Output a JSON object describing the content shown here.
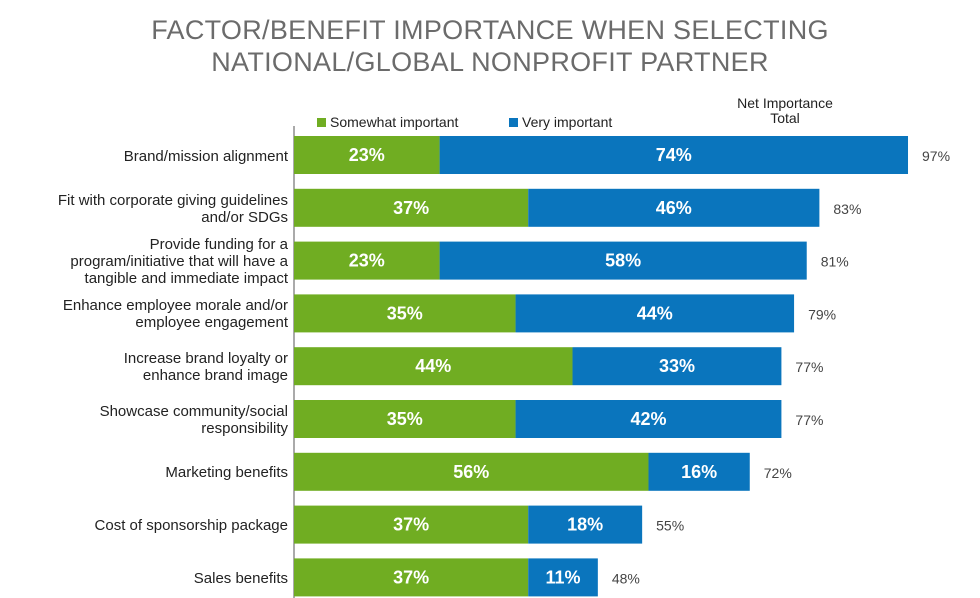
{
  "title_line1": "FACTOR/BENEFIT IMPORTANCE WHEN SELECTING",
  "title_line2": "NATIONAL/GLOBAL NONPROFIT PARTNER",
  "legend": {
    "somewhat": "Somewhat important",
    "very": "Very important",
    "net_line1": "Net Importance",
    "net_line2": "Total"
  },
  "colors": {
    "somewhat": "#70ad22",
    "very": "#0a75bd"
  },
  "chart_data": {
    "type": "bar",
    "orientation": "horizontal",
    "stacked": true,
    "categories": [
      "Brand/mission alignment",
      "Fit with corporate giving guidelines\nand/or SDGs",
      "Provide funding for a\nprogram/initiative that will have a\ntangible and immediate impact",
      "Enhance employee morale and/or\nemployee engagement",
      "Increase brand loyalty or\nenhance brand image",
      "Showcase community/social\nresponsibility",
      "Marketing benefits",
      "Cost of sponsorship package",
      "Sales benefits"
    ],
    "series": [
      {
        "name": "Somewhat important",
        "values": [
          23,
          37,
          23,
          35,
          44,
          35,
          56,
          37,
          37
        ]
      },
      {
        "name": "Very important",
        "values": [
          74,
          46,
          58,
          44,
          33,
          42,
          16,
          18,
          11
        ]
      }
    ],
    "net_importance_total": [
      97,
      83,
      81,
      79,
      77,
      77,
      72,
      55,
      48
    ],
    "value_format": "percent",
    "legend_position": "top",
    "grid": false
  }
}
